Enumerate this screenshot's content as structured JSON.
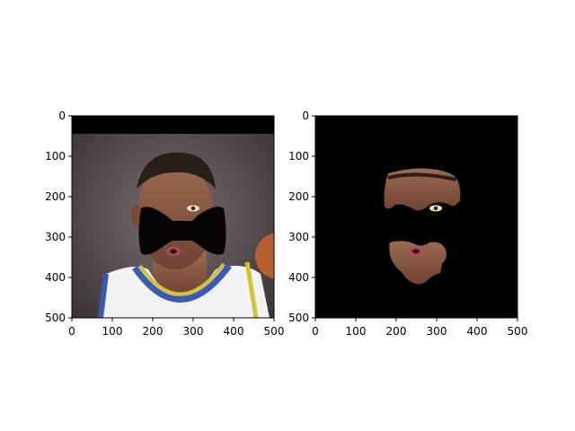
{
  "panels": [
    {
      "name": "left",
      "description_label": "masked-face",
      "x_ticks": [
        "0",
        "100",
        "200",
        "300",
        "400",
        "500"
      ],
      "y_ticks": [
        "0",
        "100",
        "200",
        "300",
        "400",
        "500"
      ]
    },
    {
      "name": "right",
      "description_label": "segmented-face",
      "x_ticks": [
        "0",
        "100",
        "200",
        "300",
        "400",
        "500"
      ],
      "y_ticks": [
        "0",
        "100",
        "200",
        "300",
        "400",
        "500"
      ]
    }
  ],
  "colors": {
    "axes_frame": "#000000",
    "mask": "#000000",
    "background_wall": "#5a4e52",
    "skin": "#8a5a44",
    "jersey": "#f2f2f2",
    "jersey_trim_blue": "#3a5bb0",
    "jersey_trim_yellow": "#d6c23a"
  }
}
